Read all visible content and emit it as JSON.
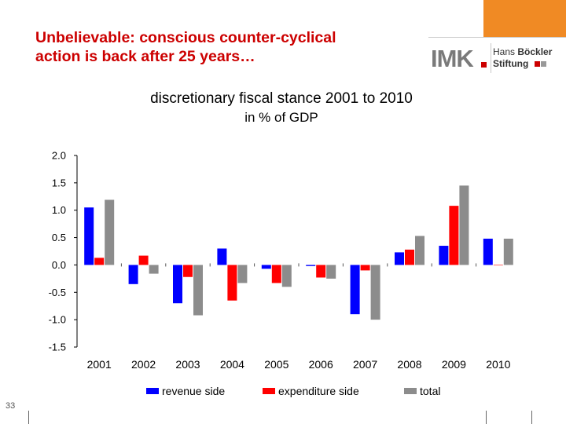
{
  "slide": {
    "title_line1": "Unbelievable: conscious counter-cyclical",
    "title_line2": "action is back after 25 years…",
    "page_number": "33"
  },
  "logo": {
    "imk": "IMK",
    "hans": "Hans",
    "boeckler": "Böckler",
    "stiftung": "Stiftung"
  },
  "colors": {
    "title": "#cc0000",
    "accent": "#f08a24",
    "revenue": "#0000ff",
    "expenditure": "#ff0000",
    "total": "#8c8c8c"
  },
  "chart_data": {
    "type": "bar",
    "title": "discretionary fiscal stance 2001 to 2010",
    "subtitle": "in % of GDP",
    "categories": [
      "2001",
      "2002",
      "2003",
      "2004",
      "2005",
      "2006",
      "2007",
      "2008",
      "2009",
      "2010"
    ],
    "series": [
      {
        "name": "revenue side",
        "values": [
          1.05,
          -0.35,
          -0.7,
          0.3,
          -0.07,
          -0.02,
          -0.9,
          0.23,
          0.35,
          0.48
        ]
      },
      {
        "name": "expenditure side",
        "values": [
          0.13,
          0.17,
          -0.22,
          -0.65,
          -0.33,
          -0.23,
          -0.1,
          0.28,
          1.08,
          0.0
        ]
      },
      {
        "name": "total",
        "values": [
          1.19,
          -0.16,
          -0.92,
          -0.33,
          -0.4,
          -0.25,
          -1.0,
          0.53,
          1.45,
          0.48
        ]
      }
    ],
    "yticks": [
      "2.0",
      "1.5",
      "1.0",
      "0.5",
      "0.0",
      "-0.5",
      "-1.0",
      "-1.5"
    ],
    "ylim": [
      -1.5,
      2.0
    ],
    "xlabel": "",
    "ylabel": "",
    "grid": false,
    "legend_position": "bottom"
  }
}
